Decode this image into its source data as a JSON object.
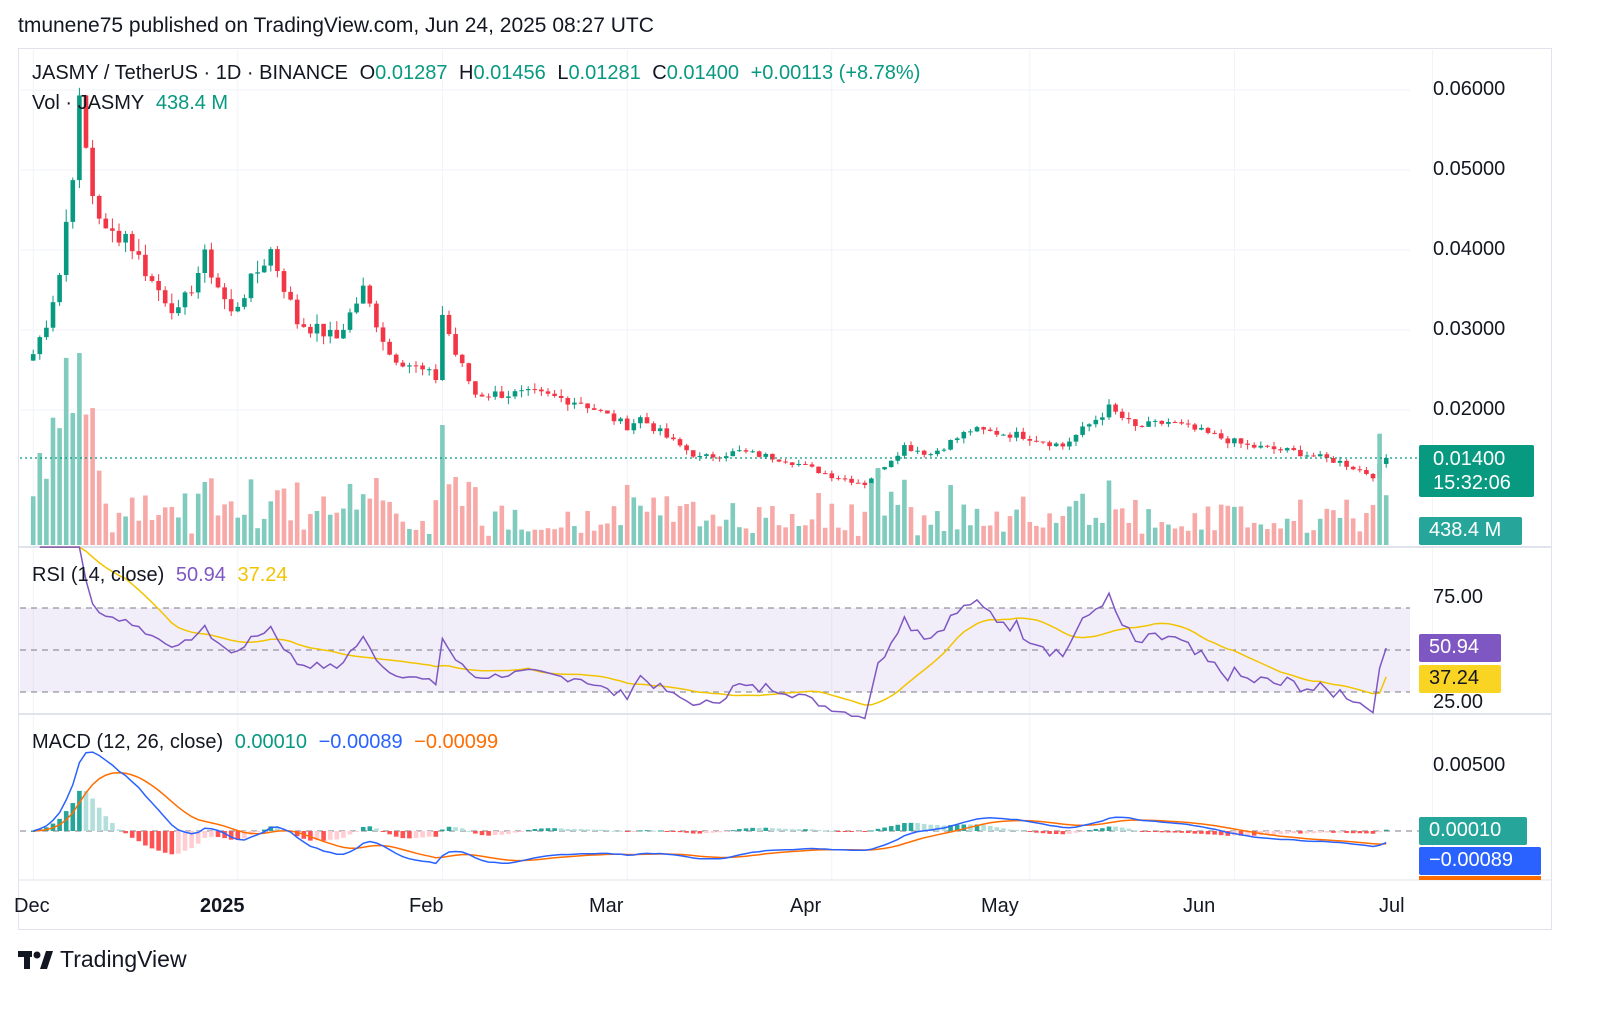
{
  "header": {
    "published": "tmunene75 published on TradingView.com, Jun 24, 2025 08:27 UTC"
  },
  "legend_main": {
    "symbol": "JASMY / TetherUS · 1D · BINANCE",
    "o_label": "O",
    "o_value": "0.01287",
    "h_label": "H",
    "h_value": "0.01456",
    "l_label": "L",
    "l_value": "0.01281",
    "c_label": "C",
    "c_value": "0.01400",
    "change": "+0.00113 (+8.78%)"
  },
  "legend_vol": {
    "label": "Vol · JASMY",
    "value": "438.4 M"
  },
  "legend_rsi": {
    "label": "RSI (14, close)",
    "rsi": "50.94",
    "ma": "37.24"
  },
  "legend_macd": {
    "label": "MACD (12, 26, close)",
    "hist": "0.00010",
    "macd": "−0.00089",
    "signal": "−0.00099"
  },
  "price_axis": [
    "0.06000",
    "0.05000",
    "0.04000",
    "0.03000",
    "0.02000"
  ],
  "rsi_axis": [
    "75.00",
    "25.00"
  ],
  "macd_axis": [
    "0.00500"
  ],
  "badges": {
    "price": "0.01400",
    "countdown": "15:32:06",
    "volume": "438.4 M",
    "rsi": "50.94",
    "rsi_ma": "37.24",
    "macd_hist": "0.00010",
    "macd_line": "−0.00089"
  },
  "x_axis": [
    "Dec",
    "2025",
    "Feb",
    "Mar",
    "Apr",
    "May",
    "Jun",
    "Jul"
  ],
  "footer": {
    "brand": "TradingView"
  },
  "colors": {
    "up": "#089981",
    "down": "#f23645",
    "vol_up": "#7fcbbd",
    "vol_down": "#f7a9a7",
    "rsi": "#7e57c2",
    "rsi_ma": "#f2c400",
    "macd": "#2962ff",
    "signal": "#ff6d00"
  },
  "chart_data": {
    "type": "candlestick",
    "symbol": "JASMY/USDT",
    "interval": "1D",
    "price_range": [
      0.0065,
      0.0635
    ],
    "last_close": 0.014,
    "close_keypoints": [
      {
        "date": "2024-12-01",
        "close": 0.027
      },
      {
        "date": "2024-12-03",
        "close": 0.031
      },
      {
        "date": "2024-12-05",
        "close": 0.037
      },
      {
        "date": "2024-12-07",
        "close": 0.05
      },
      {
        "date": "2024-12-08",
        "close": 0.058
      },
      {
        "date": "2024-12-10",
        "close": 0.047
      },
      {
        "date": "2024-12-12",
        "close": 0.042
      },
      {
        "date": "2024-12-15",
        "close": 0.042
      },
      {
        "date": "2024-12-19",
        "close": 0.036
      },
      {
        "date": "2024-12-23",
        "close": 0.032
      },
      {
        "date": "2024-12-27",
        "close": 0.039
      },
      {
        "date": "2024-12-31",
        "close": 0.032
      },
      {
        "date": "2025-01-06",
        "close": 0.04
      },
      {
        "date": "2025-01-10",
        "close": 0.031
      },
      {
        "date": "2025-01-16",
        "close": 0.029
      },
      {
        "date": "2025-01-20",
        "close": 0.035
      },
      {
        "date": "2025-01-24",
        "close": 0.027
      },
      {
        "date": "2025-01-31",
        "close": 0.024
      },
      {
        "date": "2025-02-01",
        "close": 0.032
      },
      {
        "date": "2025-02-03",
        "close": 0.027
      },
      {
        "date": "2025-02-06",
        "close": 0.022
      },
      {
        "date": "2025-02-15",
        "close": 0.022
      },
      {
        "date": "2025-02-22",
        "close": 0.021
      },
      {
        "date": "2025-03-01",
        "close": 0.018
      },
      {
        "date": "2025-03-03",
        "close": 0.019
      },
      {
        "date": "2025-03-08",
        "close": 0.016
      },
      {
        "date": "2025-03-12",
        "close": 0.014
      },
      {
        "date": "2025-03-18",
        "close": 0.0148
      },
      {
        "date": "2025-03-25",
        "close": 0.0138
      },
      {
        "date": "2025-04-01",
        "close": 0.0118
      },
      {
        "date": "2025-04-06",
        "close": 0.0108
      },
      {
        "date": "2025-04-12",
        "close": 0.0155
      },
      {
        "date": "2025-04-16",
        "close": 0.0145
      },
      {
        "date": "2025-04-22",
        "close": 0.0175
      },
      {
        "date": "2025-04-30",
        "close": 0.0168
      },
      {
        "date": "2025-05-06",
        "close": 0.0155
      },
      {
        "date": "2025-05-13",
        "close": 0.0202
      },
      {
        "date": "2025-05-17",
        "close": 0.0178
      },
      {
        "date": "2025-05-22",
        "close": 0.0185
      },
      {
        "date": "2025-05-28",
        "close": 0.017
      },
      {
        "date": "2025-06-03",
        "close": 0.0155
      },
      {
        "date": "2025-06-10",
        "close": 0.0148
      },
      {
        "date": "2025-06-17",
        "close": 0.0135
      },
      {
        "date": "2025-06-22",
        "close": 0.0118
      },
      {
        "date": "2025-06-24",
        "close": 0.014
      }
    ],
    "volume_last": "438.4 M",
    "rsi": {
      "period": 14,
      "value": 50.94,
      "ma": 37.24,
      "bands": [
        30,
        70
      ],
      "axis_labels": [
        75,
        25
      ]
    },
    "macd": {
      "fast": 12,
      "slow": 26,
      "histogram": 0.0001,
      "macd": -0.00089,
      "signal": -0.00099
    }
  }
}
